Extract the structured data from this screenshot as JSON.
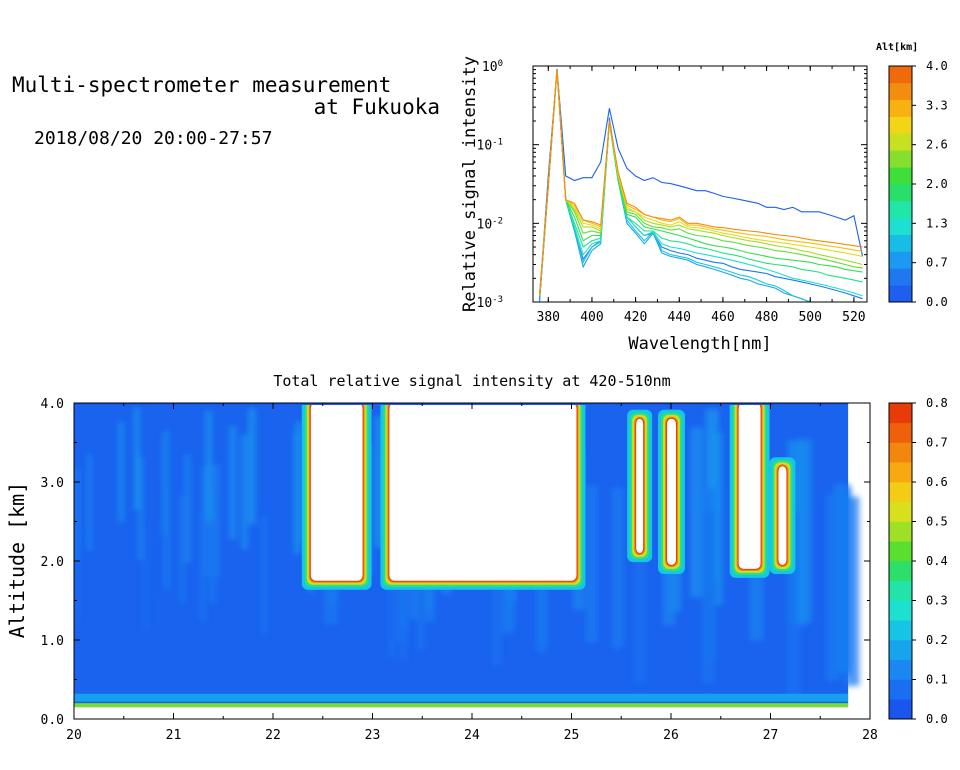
{
  "header": {
    "title_line1": "Multi-spectrometer measurement",
    "title_line2": "at Fukuoka",
    "datetime": "2018/08/20 20:00-27:57"
  },
  "chart_data": [
    {
      "type": "line",
      "xlabel": "Wavelength[nm]",
      "ylabel": "Relative signal intensity",
      "yscale": "log",
      "xlim": [
        373,
        526
      ],
      "ylim": [
        0.001,
        1
      ],
      "xticks": [
        380,
        400,
        420,
        440,
        460,
        480,
        500,
        520
      ],
      "yticks": [
        {
          "value": 1,
          "base": "10",
          "exp": "0"
        },
        {
          "value": 0.1,
          "base": "10",
          "exp": "-1"
        },
        {
          "value": 0.01,
          "base": "10",
          "exp": "-2"
        },
        {
          "value": 0.001,
          "base": "10",
          "exp": "-3"
        }
      ],
      "x": [
        376,
        380,
        384,
        388,
        392,
        396,
        400,
        404,
        408,
        412,
        416,
        420,
        424,
        428,
        432,
        436,
        440,
        444,
        448,
        452,
        456,
        460,
        464,
        468,
        472,
        476,
        480,
        484,
        488,
        492,
        496,
        500,
        504,
        508,
        512,
        516,
        520,
        524
      ],
      "series": [
        {
          "alt": 0.0,
          "values": [
            0.0011,
            0.04,
            0.92,
            0.04,
            0.035,
            0.038,
            0.038,
            0.06,
            0.29,
            0.09,
            0.05,
            0.04,
            0.035,
            0.038,
            0.033,
            0.032,
            0.03,
            0.028,
            0.026,
            0.026,
            0.024,
            0.022,
            0.021,
            0.02,
            0.019,
            0.018,
            0.016,
            0.016,
            0.015,
            0.016,
            0.014,
            0.014,
            0.014,
            0.013,
            0.012,
            0.011,
            0.0125,
            0.0038
          ]
        },
        {
          "alt": 0.3,
          "values": [
            0.001,
            0.03,
            0.9,
            0.02,
            0.008,
            0.0035,
            0.005,
            0.006,
            0.22,
            0.04,
            0.012,
            0.009,
            0.007,
            0.0075,
            0.005,
            0.0045,
            0.0042,
            0.004,
            0.0036,
            0.0034,
            0.0032,
            0.0031,
            0.0028,
            0.0026,
            0.0025,
            0.0024,
            0.0023,
            0.0021,
            0.002,
            0.0019,
            0.0018,
            0.0017,
            0.0016,
            0.0015,
            0.0014,
            0.0013,
            0.0012,
            0.0011
          ]
        },
        {
          "alt": 0.7,
          "values": [
            0.001,
            0.03,
            0.9,
            0.02,
            0.008,
            0.0028,
            0.0045,
            0.0055,
            0.2,
            0.035,
            0.01,
            0.0075,
            0.0055,
            0.0075,
            0.0042,
            0.0038,
            0.0036,
            0.0034,
            0.003,
            0.0028,
            0.0026,
            0.0024,
            0.0022,
            0.002,
            0.0019,
            0.0017,
            0.0016,
            0.0015,
            0.0013,
            0.0012,
            0.0011,
            0.001,
            0.001,
            0.001,
            0.001,
            0.001,
            0.001,
            0.001
          ]
        },
        {
          "alt": 1.0,
          "values": [
            0.0012,
            0.03,
            0.9,
            0.02,
            0.0085,
            0.0032,
            0.005,
            0.0058,
            0.19,
            0.035,
            0.011,
            0.008,
            0.006,
            0.0078,
            0.0045,
            0.004,
            0.0038,
            0.0036,
            0.0032,
            0.003,
            0.0028,
            0.0026,
            0.0024,
            0.0022,
            0.0021,
            0.0019,
            0.0017,
            0.0016,
            0.0014,
            0.0012,
            0.0011,
            0.001,
            0.001,
            0.001,
            0.001,
            0.001,
            0.001,
            0.001
          ]
        },
        {
          "alt": 1.3,
          "values": [
            0.0012,
            0.03,
            0.9,
            0.02,
            0.009,
            0.004,
            0.0055,
            0.006,
            0.2,
            0.035,
            0.012,
            0.009,
            0.007,
            0.0078,
            0.0055,
            0.005,
            0.0048,
            0.0045,
            0.0042,
            0.004,
            0.0038,
            0.0036,
            0.0034,
            0.0032,
            0.003,
            0.0028,
            0.0026,
            0.0024,
            0.0022,
            0.002,
            0.0019,
            0.0018,
            0.0017,
            0.0016,
            0.0015,
            0.0014,
            0.0013,
            0.0012
          ]
        },
        {
          "alt": 1.7,
          "values": [
            0.0012,
            0.03,
            0.9,
            0.02,
            0.01,
            0.005,
            0.006,
            0.0065,
            0.2,
            0.035,
            0.012,
            0.01,
            0.008,
            0.008,
            0.0065,
            0.006,
            0.0058,
            0.0055,
            0.005,
            0.0048,
            0.0045,
            0.0042,
            0.004,
            0.0038,
            0.0035,
            0.0033,
            0.0031,
            0.003,
            0.0029,
            0.0028,
            0.0026,
            0.0025,
            0.0024,
            0.0022,
            0.0021,
            0.002,
            0.0019,
            0.0018
          ]
        },
        {
          "alt": 2.0,
          "values": [
            0.0012,
            0.03,
            0.9,
            0.02,
            0.012,
            0.006,
            0.007,
            0.007,
            0.2,
            0.035,
            0.013,
            0.012,
            0.009,
            0.0085,
            0.008,
            0.0075,
            0.007,
            0.0065,
            0.006,
            0.0055,
            0.0052,
            0.005,
            0.0048,
            0.0045,
            0.0042,
            0.004,
            0.0038,
            0.0036,
            0.0035,
            0.0034,
            0.0033,
            0.0032,
            0.003,
            0.0029,
            0.0028,
            0.0026,
            0.0025,
            0.0024
          ]
        },
        {
          "alt": 2.3,
          "values": [
            0.0012,
            0.03,
            0.9,
            0.02,
            0.014,
            0.0075,
            0.008,
            0.0075,
            0.2,
            0.04,
            0.014,
            0.013,
            0.01,
            0.009,
            0.0088,
            0.0082,
            0.0085,
            0.0075,
            0.007,
            0.0068,
            0.0065,
            0.006,
            0.0058,
            0.0055,
            0.0052,
            0.005,
            0.0048,
            0.0045,
            0.0044,
            0.0042,
            0.004,
            0.0038,
            0.0036,
            0.0034,
            0.0032,
            0.003,
            0.0028,
            0.0027
          ]
        },
        {
          "alt": 2.6,
          "values": [
            0.0012,
            0.03,
            0.9,
            0.02,
            0.015,
            0.009,
            0.009,
            0.008,
            0.2,
            0.04,
            0.015,
            0.014,
            0.011,
            0.01,
            0.0095,
            0.009,
            0.0095,
            0.0085,
            0.0082,
            0.0078,
            0.0075,
            0.007,
            0.0066,
            0.0063,
            0.006,
            0.0058,
            0.0055,
            0.0052,
            0.005,
            0.0048,
            0.0045,
            0.0043,
            0.004,
            0.0038,
            0.0036,
            0.0034,
            0.0032,
            0.003
          ]
        },
        {
          "alt": 3.0,
          "values": [
            0.0012,
            0.03,
            0.9,
            0.02,
            0.016,
            0.01,
            0.0095,
            0.0085,
            0.2,
            0.042,
            0.016,
            0.014,
            0.012,
            0.011,
            0.01,
            0.0095,
            0.0105,
            0.009,
            0.0088,
            0.0085,
            0.008,
            0.0075,
            0.0072,
            0.0068,
            0.0065,
            0.0062,
            0.006,
            0.0058,
            0.0056,
            0.0054,
            0.0052,
            0.005,
            0.0048,
            0.0046,
            0.0044,
            0.0042,
            0.004,
            0.0038
          ]
        },
        {
          "alt": 3.3,
          "values": [
            0.0012,
            0.03,
            0.9,
            0.02,
            0.017,
            0.011,
            0.01,
            0.009,
            0.2,
            0.045,
            0.017,
            0.015,
            0.013,
            0.012,
            0.011,
            0.0105,
            0.0115,
            0.0095,
            0.0095,
            0.009,
            0.0085,
            0.0082,
            0.0078,
            0.0075,
            0.0072,
            0.007,
            0.0068,
            0.0065,
            0.0062,
            0.006,
            0.0058,
            0.0056,
            0.0054,
            0.0052,
            0.005,
            0.0048,
            0.0046,
            0.0044
          ]
        },
        {
          "alt": 3.7,
          "values": [
            0.0012,
            0.03,
            0.9,
            0.02,
            0.018,
            0.011,
            0.0105,
            0.0095,
            0.2,
            0.045,
            0.018,
            0.016,
            0.013,
            0.012,
            0.0115,
            0.011,
            0.012,
            0.01,
            0.01,
            0.0095,
            0.009,
            0.0088,
            0.0085,
            0.0082,
            0.008,
            0.0078,
            0.0075,
            0.0072,
            0.007,
            0.0068,
            0.0065,
            0.0062,
            0.006,
            0.0058,
            0.0056,
            0.0054,
            0.0052,
            0.005
          ]
        }
      ],
      "colorbar": {
        "label": "Alt[km]",
        "ticks": [
          "0.0",
          "0.7",
          "1.3",
          "2.0",
          "2.6",
          "3.3",
          "4.0"
        ],
        "range": [
          0,
          4
        ],
        "colors": [
          "#1e5ff0",
          "#1f78ef",
          "#1a9af0",
          "#17bde3",
          "#1ee0d0",
          "#20e6a8",
          "#28df6c",
          "#3fdf3a",
          "#86df2c",
          "#c7e020",
          "#f2d616",
          "#f7b210",
          "#f38d0d",
          "#ef6a0a"
        ]
      }
    },
    {
      "type": "heatmap",
      "title": "Total relative signal intensity at 420-510nm",
      "xlabel": "",
      "ylabel": "Altitude [km]",
      "xlim": [
        20,
        28
      ],
      "ylim": [
        0,
        4
      ],
      "xticks": [
        "20",
        "21",
        "22",
        "23",
        "24",
        "25",
        "26",
        "27",
        "28"
      ],
      "yticks": [
        "0.0",
        "1.0",
        "2.0",
        "3.0",
        "4.0"
      ],
      "data_extent_x": [
        20,
        27.78
      ],
      "data_extent_y": [
        0.15,
        4.0
      ],
      "colorbar": {
        "ticks": [
          "0.0",
          "0.1",
          "0.2",
          "0.3",
          "0.4",
          "0.5",
          "0.6",
          "0.7",
          "0.8"
        ],
        "range": [
          0,
          0.8
        ],
        "colors": [
          "#1a55ee",
          "#1a6ef0",
          "#1a88f0",
          "#18a4ec",
          "#16c4e4",
          "#1de0d0",
          "#22e4a8",
          "#2cdf6a",
          "#5adf30",
          "#9ee024",
          "#d8e01c",
          "#f5cc14",
          "#f7aa10",
          "#f3860c",
          "#ef600a",
          "#e83c08"
        ]
      },
      "structure": {
        "background_value": 0.03,
        "surface_band_value": 0.15,
        "cloud_regions": [
          {
            "x0": 22.38,
            "x1": 22.9,
            "y0": 1.75,
            "y1": 4.0
          },
          {
            "x0": 23.17,
            "x1": 25.05,
            "y0": 1.75,
            "y1": 4.0
          },
          {
            "x0": 25.65,
            "x1": 25.72,
            "y0": 2.1,
            "y1": 3.8
          },
          {
            "x0": 25.96,
            "x1": 26.05,
            "y0": 1.95,
            "y1": 3.8
          },
          {
            "x0": 26.68,
            "x1": 26.9,
            "y0": 1.9,
            "y1": 4.0
          },
          {
            "x0": 27.08,
            "x1": 27.16,
            "y0": 1.95,
            "y1": 3.2
          }
        ]
      }
    }
  ]
}
